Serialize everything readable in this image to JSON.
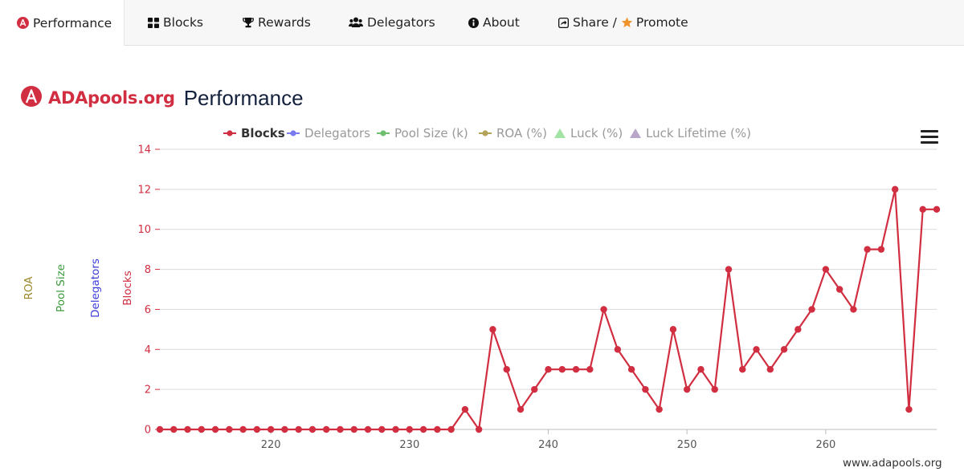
{
  "tabs": [
    {
      "label": "Performance",
      "icon": "adapools-logo-icon",
      "active": true
    },
    {
      "label": "Blocks",
      "icon": "grid-icon"
    },
    {
      "label": "Rewards",
      "icon": "trophy-icon"
    },
    {
      "label": "Delegators",
      "icon": "users-icon"
    },
    {
      "label": "About",
      "icon": "info-icon"
    },
    {
      "label_a": "Share /",
      "label_b": "Promote",
      "icon_a": "share-icon",
      "icon_b": "star-icon"
    }
  ],
  "brand": {
    "logo_text": "ADApools.org",
    "title": "Performance",
    "color": "#d12e41"
  },
  "legend": [
    {
      "name": "Blocks",
      "color": "#d12e41",
      "active": true
    },
    {
      "name": "Delegators",
      "color": "#7b7bf0"
    },
    {
      "name": "Pool Size (k)",
      "color": "#6fbf6f"
    },
    {
      "name": "ROA (%)",
      "color": "#b5a35a"
    },
    {
      "name": "Luck (%)",
      "color": "#a3e3a3"
    },
    {
      "name": "Luck Lifetime (%)",
      "color": "#b9a6c9"
    }
  ],
  "axis_titles": {
    "roa": "ROA",
    "pool_size": "Pool Size",
    "delegators": "Delegators",
    "blocks": "Blocks"
  },
  "axis_colors": {
    "roa": "#9a8a2a",
    "pool_size": "#3d9a3d",
    "delegators": "#3b3bdb",
    "blocks": "#d12e41"
  },
  "credit": "www.adapools.org",
  "chart_data": {
    "type": "line",
    "title": "Performance",
    "xlabel": "",
    "ylabel": "Blocks",
    "x": [
      212,
      213,
      214,
      215,
      216,
      217,
      218,
      219,
      220,
      221,
      222,
      223,
      224,
      225,
      226,
      227,
      228,
      229,
      230,
      231,
      232,
      233,
      234,
      235,
      236,
      237,
      238,
      239,
      240,
      241,
      242,
      243,
      244,
      245,
      246,
      247,
      248,
      249,
      250,
      251,
      252,
      253,
      254,
      255,
      256,
      257,
      258,
      259,
      260,
      261,
      262,
      263,
      264,
      265,
      266,
      267,
      268
    ],
    "series": [
      {
        "name": "Blocks",
        "color": "#d12e41",
        "values": [
          0,
          0,
          0,
          0,
          0,
          0,
          0,
          0,
          0,
          0,
          0,
          0,
          0,
          0,
          0,
          0,
          0,
          0,
          0,
          0,
          0,
          0,
          1,
          0,
          5,
          3,
          1,
          2,
          3,
          3,
          3,
          3,
          6,
          4,
          3,
          2,
          1,
          5,
          2,
          3,
          2,
          8,
          3,
          4,
          3,
          4,
          5,
          6,
          8,
          7,
          6,
          9,
          9,
          12,
          1,
          11,
          11
        ]
      }
    ],
    "x_ticks": [
      220,
      230,
      240,
      250,
      260
    ],
    "y_ticks": [
      0,
      2,
      4,
      6,
      8,
      10,
      12,
      14
    ],
    "xlim": [
      212,
      268
    ],
    "ylim": [
      0,
      14
    ],
    "grid": true,
    "legend_position": "top"
  }
}
